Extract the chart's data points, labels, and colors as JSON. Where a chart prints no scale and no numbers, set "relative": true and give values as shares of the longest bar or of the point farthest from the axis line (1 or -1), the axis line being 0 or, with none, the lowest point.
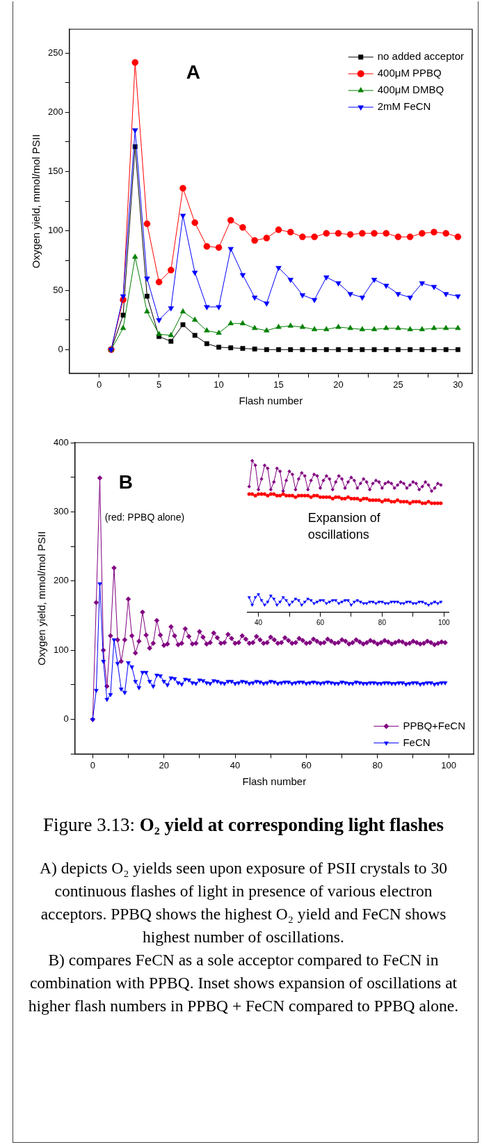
{
  "chart_data": [
    {
      "type": "line",
      "xlabel": "Flash number",
      "ylabel": "Oxygen yield, mmol/mol PSII",
      "legend": "top right",
      "annotations": [
        "A"
      ],
      "x": [
        1,
        2,
        3,
        4,
        5,
        6,
        7,
        8,
        9,
        10,
        11,
        12,
        13,
        14,
        15,
        16,
        17,
        18,
        19,
        20,
        21,
        22,
        23,
        24,
        25,
        26,
        27,
        28,
        29,
        30
      ],
      "xlim": [
        -2.5,
        31.2
      ],
      "ylim": [
        -20,
        270
      ],
      "xticks": [
        0,
        {
          "value": 2.5,
          "label": null
        },
        5,
        {
          "value": 7.5,
          "label": null
        },
        10,
        {
          "value": 12.5,
          "label": null
        },
        15,
        {
          "value": 17.5,
          "label": null
        },
        20,
        {
          "value": 22.5,
          "label": null
        },
        25,
        {
          "value": 27.5,
          "label": null
        },
        30
      ],
      "yticks": [
        0,
        {
          "value": 25,
          "label": null
        },
        50,
        {
          "value": 75,
          "label": null
        },
        100,
        {
          "value": 125,
          "label": null
        },
        150,
        {
          "value": 175,
          "label": null
        },
        200,
        {
          "value": 225,
          "label": null
        },
        250
      ],
      "series": [
        {
          "name": "no added acceptor",
          "color": "#000000",
          "marker": "square",
          "values": [
            0,
            29,
            171,
            45,
            11,
            7,
            21,
            12,
            5,
            2,
            1.5,
            1,
            0.5,
            0,
            0,
            0,
            0,
            0,
            0,
            0,
            0,
            0,
            0,
            0,
            0,
            0,
            0,
            0,
            0,
            0
          ]
        },
        {
          "name": "400μM PPBQ",
          "color": "#ff0000",
          "marker": "circle",
          "values": [
            0,
            42,
            242,
            106,
            57,
            67,
            136,
            107,
            87,
            86,
            109,
            103,
            92,
            94,
            101,
            99,
            95,
            95,
            98,
            98,
            97,
            98,
            98,
            98,
            95,
            95,
            98,
            99,
            98,
            95
          ]
        },
        {
          "name": "400μM DMBQ",
          "color": "#008000",
          "marker": "triangle",
          "values": [
            0,
            18,
            78,
            32,
            13,
            12,
            32,
            25,
            16,
            14,
            22,
            22,
            18,
            16,
            19,
            20,
            19,
            17,
            17,
            19,
            18,
            17,
            17,
            18,
            18,
            17,
            17,
            18,
            18,
            18
          ]
        },
        {
          "name": "2mM FeCN",
          "color": "#0000ff",
          "marker": "triangle-down",
          "values": [
            0,
            45,
            185,
            60,
            25,
            35,
            113,
            65,
            36,
            36,
            85,
            63,
            44,
            39,
            69,
            59,
            46,
            42,
            61,
            56,
            47,
            44,
            59,
            54,
            47,
            44,
            56,
            53,
            47,
            45
          ]
        }
      ]
    },
    {
      "type": "line",
      "xlabel": "Flash number",
      "ylabel": "Oxygen yield, mmol/mol PSII",
      "legend": "bottom right",
      "annotations": [
        "B",
        "(red: PPBQ alone)"
      ],
      "x": [
        0,
        1,
        2,
        3,
        4,
        5,
        6,
        7,
        8,
        9,
        10,
        11,
        12,
        13,
        14,
        15,
        16,
        17,
        18,
        19,
        20,
        21,
        22,
        23,
        24,
        25,
        26,
        27,
        28,
        29,
        30,
        31,
        32,
        33,
        34,
        35,
        36,
        37,
        38,
        39,
        40,
        41,
        42,
        43,
        44,
        45,
        46,
        47,
        48,
        49,
        50,
        51,
        52,
        53,
        54,
        55,
        56,
        57,
        58,
        59,
        60,
        61,
        62,
        63,
        64,
        65,
        66,
        67,
        68,
        69,
        70,
        71,
        72,
        73,
        74,
        75,
        76,
        77,
        78,
        79,
        80,
        81,
        82,
        83,
        84,
        85,
        86,
        87,
        88,
        89,
        90,
        91,
        92,
        93,
        94,
        95,
        96,
        97,
        98,
        99
      ],
      "xlim": [
        -5,
        107
      ],
      "ylim": [
        -50,
        400
      ],
      "xticks": [
        0,
        {
          "value": 10,
          "label": null
        },
        20,
        {
          "value": 30,
          "label": null
        },
        40,
        {
          "value": 50,
          "label": null
        },
        60,
        {
          "value": 70,
          "label": null
        },
        80,
        {
          "value": 90,
          "label": null
        },
        100
      ],
      "yticks": [
        {
          "value": -50,
          "label": null
        },
        0,
        {
          "value": 50,
          "label": null
        },
        100,
        {
          "value": 150,
          "label": null
        },
        200,
        {
          "value": 250,
          "label": null
        },
        300,
        {
          "value": 350,
          "label": null
        },
        400
      ],
      "series": [
        {
          "name": "PPBQ+FeCN",
          "color": "#800080",
          "marker": "diamond",
          "values": [
            0,
            169,
            349,
            100,
            48,
            121,
            219,
            115,
            84,
            115,
            174,
            121,
            96,
            113,
            155,
            122,
            103,
            110,
            143,
            122,
            107,
            109,
            134,
            121,
            108,
            110,
            131,
            120,
            109,
            110,
            127,
            119,
            109,
            111,
            125,
            118,
            110,
            111,
            123,
            117,
            110,
            111,
            121,
            116,
            110,
            111,
            120,
            115,
            110,
            111,
            119,
            115,
            110,
            111,
            118,
            114,
            110,
            111,
            117,
            114,
            110,
            111,
            116,
            113,
            110,
            111,
            116,
            113,
            110,
            111,
            115,
            113,
            109,
            111,
            115,
            112,
            109,
            111,
            114,
            112,
            109,
            111,
            114,
            112,
            109,
            111,
            113,
            112,
            109,
            110,
            113,
            111,
            109,
            110,
            113,
            111,
            108,
            110,
            112,
            111
          ]
        },
        {
          "name": "FeCN",
          "color": "#0000ff",
          "marker": "triangle-down",
          "values": [
            0,
            42,
            196,
            84,
            29,
            36,
            115,
            81,
            44,
            39,
            82,
            76,
            55,
            46,
            68,
            68,
            55,
            48,
            64,
            63,
            55,
            50,
            60,
            59,
            53,
            51,
            58,
            57,
            53,
            52,
            57,
            56,
            53,
            52,
            56,
            55,
            53,
            52,
            55,
            55,
            52,
            53,
            55,
            54,
            52,
            53,
            55,
            54,
            52,
            53,
            55,
            54,
            52,
            53,
            54,
            54,
            52,
            53,
            54,
            54,
            52,
            53,
            54,
            53,
            52,
            53,
            54,
            53,
            52,
            52,
            54,
            53,
            52,
            52,
            54,
            53,
            52,
            52,
            53,
            53,
            52,
            52,
            53,
            53,
            52,
            52,
            53,
            53,
            51,
            52,
            53,
            53,
            51,
            52,
            53,
            53,
            51,
            52,
            53,
            53
          ]
        }
      ]
    },
    {
      "type": "line",
      "relative": true,
      "annotations": [
        "Expansion of oscillations"
      ],
      "x": [
        37,
        38,
        39,
        40,
        41,
        42,
        43,
        44,
        45,
        46,
        47,
        48,
        49,
        50,
        51,
        52,
        53,
        54,
        55,
        56,
        57,
        58,
        59,
        60,
        61,
        62,
        63,
        64,
        65,
        66,
        67,
        68,
        69,
        70,
        71,
        72,
        73,
        74,
        75,
        76,
        77,
        78,
        79,
        80,
        81,
        82,
        83,
        84,
        85,
        86,
        87,
        88,
        89,
        90,
        91,
        92,
        93,
        94,
        95,
        96,
        97,
        98,
        99
      ],
      "xlim": [
        36.5,
        101.5
      ],
      "xticks": [
        40,
        {
          "value": 50,
          "label": null
        },
        60,
        {
          "value": 70,
          "label": null
        },
        80,
        {
          "value": 90,
          "label": null
        },
        100
      ],
      "series": [
        {
          "color": "#800080",
          "marker": "diamond",
          "values": [
            0.83,
            1.0,
            0.97,
            0.81,
            0.88,
            0.97,
            0.95,
            0.81,
            0.86,
            0.95,
            0.93,
            0.8,
            0.87,
            0.93,
            0.91,
            0.81,
            0.88,
            0.92,
            0.9,
            0.81,
            0.87,
            0.91,
            0.9,
            0.82,
            0.87,
            0.9,
            0.88,
            0.81,
            0.86,
            0.9,
            0.88,
            0.82,
            0.86,
            0.89,
            0.87,
            0.82,
            0.85,
            0.88,
            0.86,
            0.81,
            0.85,
            0.87,
            0.86,
            0.82,
            0.85,
            0.86,
            0.85,
            0.82,
            0.84,
            0.86,
            0.85,
            0.82,
            0.84,
            0.86,
            0.85,
            0.81,
            0.83,
            0.86,
            0.84,
            0.8,
            0.82,
            0.85,
            0.84
          ]
        },
        {
          "color": "#ff0000",
          "marker": "circle",
          "values": [
            0.78,
            0.78,
            0.77,
            0.78,
            0.78,
            0.78,
            0.77,
            0.78,
            0.78,
            0.77,
            0.77,
            0.78,
            0.77,
            0.77,
            0.77,
            0.76,
            0.77,
            0.77,
            0.77,
            0.77,
            0.76,
            0.77,
            0.77,
            0.76,
            0.76,
            0.76,
            0.76,
            0.75,
            0.76,
            0.76,
            0.75,
            0.75,
            0.76,
            0.75,
            0.75,
            0.75,
            0.74,
            0.75,
            0.75,
            0.74,
            0.74,
            0.74,
            0.74,
            0.73,
            0.74,
            0.74,
            0.73,
            0.73,
            0.74,
            0.73,
            0.73,
            0.73,
            0.72,
            0.73,
            0.73,
            0.73,
            0.72,
            0.72,
            0.73,
            0.72,
            0.72,
            0.72,
            0.72
          ]
        },
        {
          "color": "#0000ff",
          "marker": "triangle-down",
          "values": [
            0.1,
            0.05,
            0.1,
            0.12,
            0.08,
            0.05,
            0.07,
            0.11,
            0.09,
            0.05,
            0.07,
            0.1,
            0.08,
            0.05,
            0.07,
            0.09,
            0.08,
            0.05,
            0.07,
            0.09,
            0.08,
            0.06,
            0.07,
            0.08,
            0.08,
            0.06,
            0.07,
            0.08,
            0.08,
            0.06,
            0.07,
            0.08,
            0.08,
            0.05,
            0.07,
            0.08,
            0.07,
            0.06,
            0.06,
            0.07,
            0.07,
            0.06,
            0.07,
            0.07,
            0.06,
            0.06,
            0.07,
            0.07,
            0.07,
            0.06,
            0.06,
            0.07,
            0.07,
            0.06,
            0.06,
            0.07,
            0.07,
            0.06,
            0.05,
            0.06,
            0.07,
            0.06,
            0.07
          ]
        }
      ]
    },
    {
      "type": "other",
      "title": "Figure 3.13:",
      "subtitle": "O₂ yield at corresponding light flashes",
      "annotations": [
        "A) depicts O₂ yields seen upon exposure of PSII crystals to 30 continuous flashes of light in presence of various electron acceptors. PPBQ shows the highest O₂ yield and FeCN shows highest number of oscillations.",
        "B) compares FeCN as a sole acceptor compared to FeCN in combination with PPBQ. Inset shows expansion of oscillations at higher flash numbers in PPBQ + FeCN compared to PPBQ alone."
      ]
    }
  ]
}
